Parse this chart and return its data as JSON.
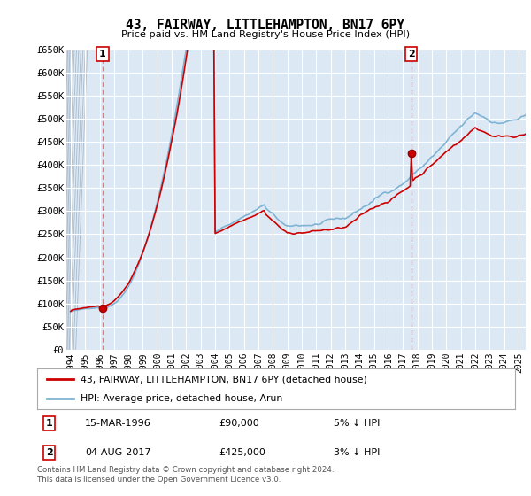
{
  "title": "43, FAIRWAY, LITTLEHAMPTON, BN17 6PY",
  "subtitle": "Price paid vs. HM Land Registry's House Price Index (HPI)",
  "ylabel_ticks": [
    "£0",
    "£50K",
    "£100K",
    "£150K",
    "£200K",
    "£250K",
    "£300K",
    "£350K",
    "£400K",
    "£450K",
    "£500K",
    "£550K",
    "£600K",
    "£650K"
  ],
  "ytick_vals": [
    0,
    50000,
    100000,
    150000,
    200000,
    250000,
    300000,
    350000,
    400000,
    450000,
    500000,
    550000,
    600000,
    650000
  ],
  "ylim": [
    0,
    650000
  ],
  "xlim_start": 1993.7,
  "xlim_end": 2025.5,
  "purchase1_date": 1996.21,
  "purchase1_price": 90000,
  "purchase2_date": 2017.58,
  "purchase2_price": 425000,
  "legend_line1": "43, FAIRWAY, LITTLEHAMPTON, BN17 6PY (detached house)",
  "legend_line2": "HPI: Average price, detached house, Arun",
  "annotation1_date": "15-MAR-1996",
  "annotation1_price": "£90,000",
  "annotation1_hpi": "5% ↓ HPI",
  "annotation2_date": "04-AUG-2017",
  "annotation2_price": "£425,000",
  "annotation2_hpi": "3% ↓ HPI",
  "footer": "Contains HM Land Registry data © Crown copyright and database right 2024.\nThis data is licensed under the Open Government Licence v3.0.",
  "line_color_red": "#cc0000",
  "line_color_blue": "#7fb3d3",
  "bg_color": "#dce9f5",
  "hatch_region_end": 1996.0
}
